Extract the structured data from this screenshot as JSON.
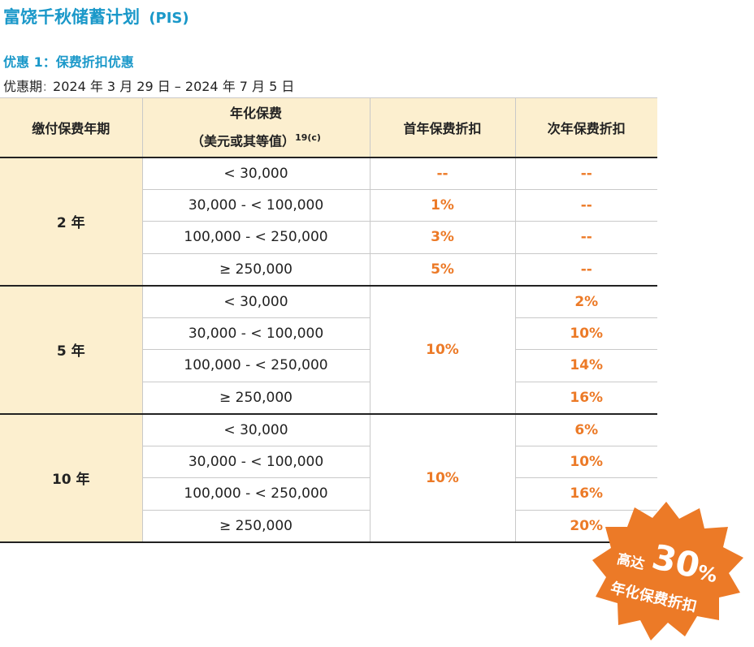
{
  "header": {
    "title": "富饶千秋储蓄计划",
    "code": "(PIS)"
  },
  "offer": {
    "title": "优惠 1：保费折扣优惠",
    "period_label": "优惠期",
    "period_sep": "：",
    "period_value": "2024 年 3 月 29 日 – 2024 年 7 月 5 日"
  },
  "table": {
    "headers": {
      "term": "缴付保费年期",
      "premium_line1": "年化保费",
      "premium_line2": "（美元或其等值）",
      "premium_note": "19(c)",
      "first_year": "首年保费折扣",
      "second_year": "次年保费折扣"
    },
    "groups": [
      {
        "term": "2 年",
        "rows": [
          {
            "premium": "< 30,000",
            "first": "--",
            "second": "--"
          },
          {
            "premium": "30,000 - < 100,000",
            "first": "1%",
            "second": "--"
          },
          {
            "premium": "100,000 - < 250,000",
            "first": "3%",
            "second": "--"
          },
          {
            "premium": "≥ 250,000",
            "first": "5%",
            "second": "--"
          }
        ]
      },
      {
        "term": "5 年",
        "first_merged": "10%",
        "rows": [
          {
            "premium": "< 30,000",
            "second": "2%"
          },
          {
            "premium": "30,000 - < 100,000",
            "second": "10%"
          },
          {
            "premium": "100,000 - < 250,000",
            "second": "14%"
          },
          {
            "premium": "≥ 250,000",
            "second": "16%"
          }
        ]
      },
      {
        "term": "10 年",
        "first_merged": "10%",
        "rows": [
          {
            "premium": "< 30,000",
            "second": "6%"
          },
          {
            "premium": "30,000 - < 100,000",
            "second": "10%"
          },
          {
            "premium": "100,000 - < 250,000",
            "second": "16%"
          },
          {
            "premium": "≥ 250,000",
            "second": "20%"
          }
        ]
      }
    ]
  },
  "badge": {
    "prefix": "高达",
    "number": "30",
    "percent": "%",
    "caption": "年化保费折扣",
    "color": "#ec7a27"
  },
  "colors": {
    "title_blue": "#1a98c9",
    "accent_orange": "#ec7a27",
    "header_cream": "#fcefcf"
  }
}
